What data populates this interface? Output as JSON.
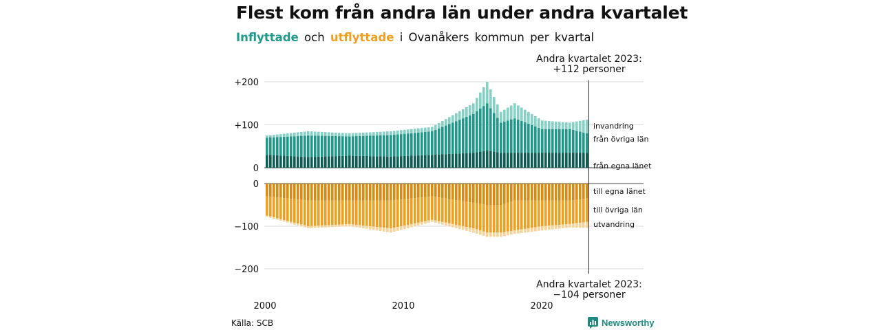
{
  "title": "Flest kom från andra län under andra kvartalet",
  "subtitle": {
    "in_word": "Inflyttade",
    "and_word": "och",
    "out_word": "utflyttade",
    "rest": "i Ovanåkers kommun per kvartal"
  },
  "source": "Källa: SCB",
  "brand": {
    "name": "Newsworthy",
    "icon": "bar-chart-logo-icon"
  },
  "colors": {
    "in_same_county": "#0b5e55",
    "in_other_county": "#1d9a8c",
    "in_immigration": "#84d2c6",
    "out_same_county": "#d98a0f",
    "out_other_county": "#f0a020",
    "out_emigration": "#f7d396"
  },
  "chart_data": {
    "type": "bar",
    "stacked": true,
    "diverging": true,
    "x_start": "2000 Q1",
    "x_end": "2023 Q2",
    "x_ticks": [
      "2000",
      "2010",
      "2020"
    ],
    "y_ticks_top": [
      "+200",
      "+100",
      "0"
    ],
    "y_ticks_bottom": [
      "0",
      "−100",
      "−200"
    ],
    "ylim_top": [
      0,
      200
    ],
    "ylim_bottom": [
      -200,
      0
    ],
    "series_labels_in": [
      "invandring",
      "från övriga län",
      "från egna länet"
    ],
    "series_labels_out": [
      "till egna länet",
      "till övriga län",
      "utvandring"
    ],
    "annotation_in": {
      "line1": "Andra kvartalet 2023:",
      "line2": "+112 personer"
    },
    "annotation_out": {
      "line1": "Andra kvartalet 2023:",
      "line2": "−104 personer"
    },
    "approximate": true,
    "anchor_quarters": [
      0,
      12,
      24,
      36,
      48,
      60,
      64,
      68,
      72,
      80,
      88,
      93
    ],
    "inflyttade_total_anchors": [
      75,
      85,
      80,
      85,
      95,
      150,
      200,
      130,
      150,
      110,
      105,
      112
    ],
    "inflyttade_same_county_anchors": [
      30,
      25,
      28,
      26,
      30,
      35,
      40,
      35,
      35,
      35,
      35,
      35
    ],
    "inflyttade_other_county_anchors": [
      40,
      50,
      45,
      50,
      55,
      90,
      110,
      70,
      80,
      55,
      55,
      45
    ],
    "utflyttade_total_anchors": [
      -85,
      -110,
      -100,
      -120,
      -95,
      -120,
      -130,
      -130,
      -120,
      -110,
      -100,
      -104
    ],
    "utflyttade_same_county_anchors": [
      -30,
      -40,
      -40,
      -40,
      -30,
      -45,
      -50,
      -50,
      -40,
      -40,
      -40,
      -35
    ],
    "utflyttade_other_county_anchors": [
      -45,
      -60,
      -55,
      -65,
      -55,
      -60,
      -65,
      -65,
      -70,
      -60,
      -55,
      -55
    ],
    "utflyttade_emigration_anchors": [
      -3,
      -5,
      -5,
      -10,
      -5,
      -10,
      -10,
      -10,
      -8,
      -10,
      -8,
      -14
    ]
  }
}
